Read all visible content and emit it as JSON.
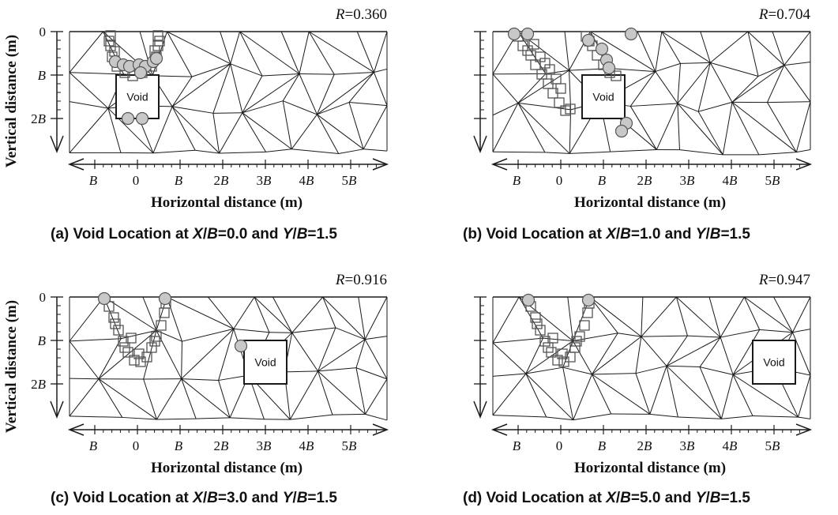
{
  "axis_labels": {
    "vertical": "Vertical distance (m)",
    "horizontal": "Horizontal distance (m)"
  },
  "y_ticks": [
    "0",
    "B",
    "2B"
  ],
  "x_ticks": [
    "B",
    "0",
    "B",
    "2B",
    "3B",
    "4B",
    "5B"
  ],
  "void_label": "Void",
  "colors": {
    "line": "#1a1a1a",
    "square": "#555555",
    "circle_fill": "#c8c8c8",
    "circle_stroke": "#555555"
  },
  "panels": [
    {
      "id": "a",
      "r_label": "R=0.360",
      "caption": {
        "prefix": "(a) Void Location at ",
        "x_var": "X",
        "x_mid": "/",
        "x_den": "B",
        "x_val": "=0.0 and ",
        "y_var": "Y",
        "y_mid": "/",
        "y_den": "B",
        "y_val": "=1.5"
      },
      "void_center_x": 0.0,
      "void_center_y": 1.5
    },
    {
      "id": "b",
      "r_label": "R=0.704",
      "caption": {
        "prefix": "(b) Void Location at ",
        "x_var": "X",
        "x_mid": "/",
        "x_den": "B",
        "x_val": "=1.0 and ",
        "y_var": "Y",
        "y_mid": "/",
        "y_den": "B",
        "y_val": "=1.5"
      },
      "void_center_x": 1.0,
      "void_center_y": 1.5
    },
    {
      "id": "c",
      "r_label": "R=0.916",
      "caption": {
        "prefix": "(c) Void Location at ",
        "x_var": "X",
        "x_mid": "/",
        "x_den": "B",
        "x_val": "=3.0 and ",
        "y_var": "Y",
        "y_mid": "/",
        "y_den": "B",
        "y_val": "=1.5"
      },
      "void_center_x": 3.0,
      "void_center_y": 1.5
    },
    {
      "id": "d",
      "r_label": "R=0.947",
      "caption": {
        "prefix": "(d) Void Location at ",
        "x_var": "X",
        "x_mid": "/",
        "x_den": "B",
        "x_val": "=5.0 and ",
        "y_var": "Y",
        "y_mid": "/",
        "y_den": "B",
        "y_val": "=1.5"
      },
      "void_center_x": 5.0,
      "void_center_y": 1.5
    }
  ]
}
